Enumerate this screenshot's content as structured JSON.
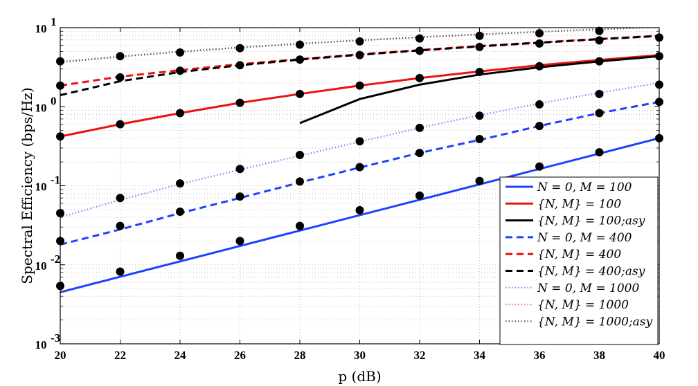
{
  "chart_data": {
    "type": "line",
    "xlabel": "p (dB)",
    "ylabel": "Spectral Efficiency (bps/Hz)",
    "xlim": [
      20,
      40
    ],
    "ylim": [
      0.001,
      10
    ],
    "yscale": "log",
    "grid": true,
    "legend_position": "bottom-right",
    "x_ticks": [
      "20",
      "22",
      "24",
      "26",
      "28",
      "30",
      "32",
      "34",
      "36",
      "38",
      "40"
    ],
    "y_ticks": [
      {
        "value": 0.001,
        "base": "10",
        "exp": "-3"
      },
      {
        "value": 0.01,
        "base": "10",
        "exp": "-2"
      },
      {
        "value": 0.1,
        "base": "10",
        "exp": "-1"
      },
      {
        "value": 1,
        "base": "10",
        "exp": "0"
      },
      {
        "value": 10,
        "base": "10",
        "exp": "1"
      }
    ],
    "series": [
      {
        "name": "N = 0, M = 100",
        "color": "#2040ff",
        "dash": "solid",
        "x": [
          20,
          40
        ],
        "y": [
          0.0045,
          0.4
        ],
        "markers_x": [
          20,
          22,
          24,
          26,
          28,
          30,
          32,
          34,
          36,
          38,
          40
        ],
        "markers_y": [
          0.0054,
          0.0082,
          0.013,
          0.02,
          0.031,
          0.049,
          0.075,
          0.115,
          0.175,
          0.265,
          0.4
        ]
      },
      {
        "name": "{N, M} = 100",
        "color": "#ee1010",
        "dash": "solid",
        "x": [
          20,
          22,
          24,
          26,
          28,
          30,
          32,
          34,
          36,
          38,
          40
        ],
        "y": [
          0.42,
          0.6,
          0.83,
          1.12,
          1.45,
          1.85,
          2.3,
          2.8,
          3.35,
          3.9,
          4.5
        ],
        "markers_x": [],
        "markers_y": []
      },
      {
        "name": "{N, M} = 100;asy",
        "color": "#000000",
        "dash": "solid",
        "x": [
          28,
          30,
          32,
          34,
          36,
          38,
          40
        ],
        "y": [
          0.62,
          1.25,
          1.9,
          2.55,
          3.15,
          3.75,
          4.35
        ],
        "markers_x": [
          20,
          22,
          24,
          26,
          28,
          30,
          32,
          34,
          36,
          38,
          40
        ],
        "markers_y": [
          0.42,
          0.6,
          0.83,
          1.12,
          1.45,
          1.85,
          2.3,
          2.75,
          3.25,
          3.75,
          4.35
        ]
      },
      {
        "name": "N = 0, M = 400",
        "color": "#2040ff",
        "dash": "dashed",
        "x": [
          20,
          22,
          24,
          26,
          28,
          30,
          32,
          34,
          36,
          38,
          40
        ],
        "y": [
          0.018,
          0.028,
          0.045,
          0.07,
          0.11,
          0.17,
          0.26,
          0.38,
          0.57,
          0.83,
          1.15
        ],
        "markers_x": [
          20,
          22,
          24,
          26,
          28,
          30,
          32,
          34,
          36,
          38,
          40
        ],
        "markers_y": [
          0.02,
          0.031,
          0.047,
          0.073,
          0.113,
          0.172,
          0.26,
          0.39,
          0.57,
          0.83,
          1.15
        ]
      },
      {
        "name": "{N, M} = 400",
        "color": "#ee1010",
        "dash": "dashed",
        "x": [
          20,
          22,
          24,
          26,
          28,
          30,
          32,
          34,
          36,
          38,
          40
        ],
        "y": [
          1.85,
          2.4,
          2.9,
          3.45,
          4.0,
          4.6,
          5.2,
          5.85,
          6.5,
          7.2,
          7.9
        ],
        "markers_x": [],
        "markers_y": []
      },
      {
        "name": "{N, M} = 400;asy",
        "color": "#000000",
        "dash": "dashed",
        "x": [
          20,
          22,
          24,
          26,
          28,
          30,
          32,
          34,
          36,
          38,
          40
        ],
        "y": [
          1.4,
          2.1,
          2.75,
          3.35,
          3.95,
          4.55,
          5.15,
          5.8,
          6.45,
          7.15,
          7.85
        ],
        "markers_x": [
          20,
          22,
          24,
          26,
          28,
          30,
          32,
          34,
          36,
          38,
          40
        ],
        "markers_y": [
          1.85,
          2.35,
          2.85,
          3.35,
          3.95,
          4.5,
          5.1,
          5.7,
          6.3,
          6.9,
          7.5
        ]
      },
      {
        "name": "N = 0, M = 1000",
        "color": "#6688ff",
        "dash": "dotted",
        "x": [
          20,
          22,
          24,
          26,
          28,
          30,
          32,
          34,
          36,
          38,
          40
        ],
        "y": [
          0.04,
          0.066,
          0.105,
          0.16,
          0.24,
          0.36,
          0.54,
          0.78,
          1.1,
          1.5,
          2.0
        ],
        "markers_x": [
          20,
          22,
          24,
          26,
          28,
          30,
          32,
          34,
          36,
          38,
          40
        ],
        "markers_y": [
          0.045,
          0.07,
          0.107,
          0.163,
          0.245,
          0.365,
          0.54,
          0.77,
          1.07,
          1.45,
          1.9
        ]
      },
      {
        "name": "{N, M} = 1000",
        "color": "#ff7070",
        "dash": "dotted",
        "x": [
          20,
          22,
          24,
          26,
          28,
          30,
          32,
          34,
          36,
          38,
          40
        ],
        "y": [
          3.7,
          4.35,
          5.0,
          5.65,
          6.3,
          6.95,
          7.6,
          8.25,
          8.9,
          9.6,
          10.3
        ],
        "markers_x": [],
        "markers_y": []
      },
      {
        "name": "{N, M} = 1000;asy",
        "color": "#555555",
        "dash": "dotted",
        "x": [
          20,
          22,
          24,
          26,
          28,
          30,
          32,
          34,
          36,
          38,
          40
        ],
        "y": [
          3.65,
          4.3,
          4.95,
          5.6,
          6.25,
          6.9,
          7.55,
          8.2,
          8.85,
          9.5,
          10.2
        ],
        "markers_x": [
          20,
          22,
          24,
          26,
          28,
          30,
          32,
          34,
          36,
          38
        ],
        "markers_y": [
          3.75,
          4.35,
          4.85,
          5.5,
          6.1,
          6.7,
          7.3,
          7.9,
          8.5,
          9.1
        ]
      }
    ]
  }
}
